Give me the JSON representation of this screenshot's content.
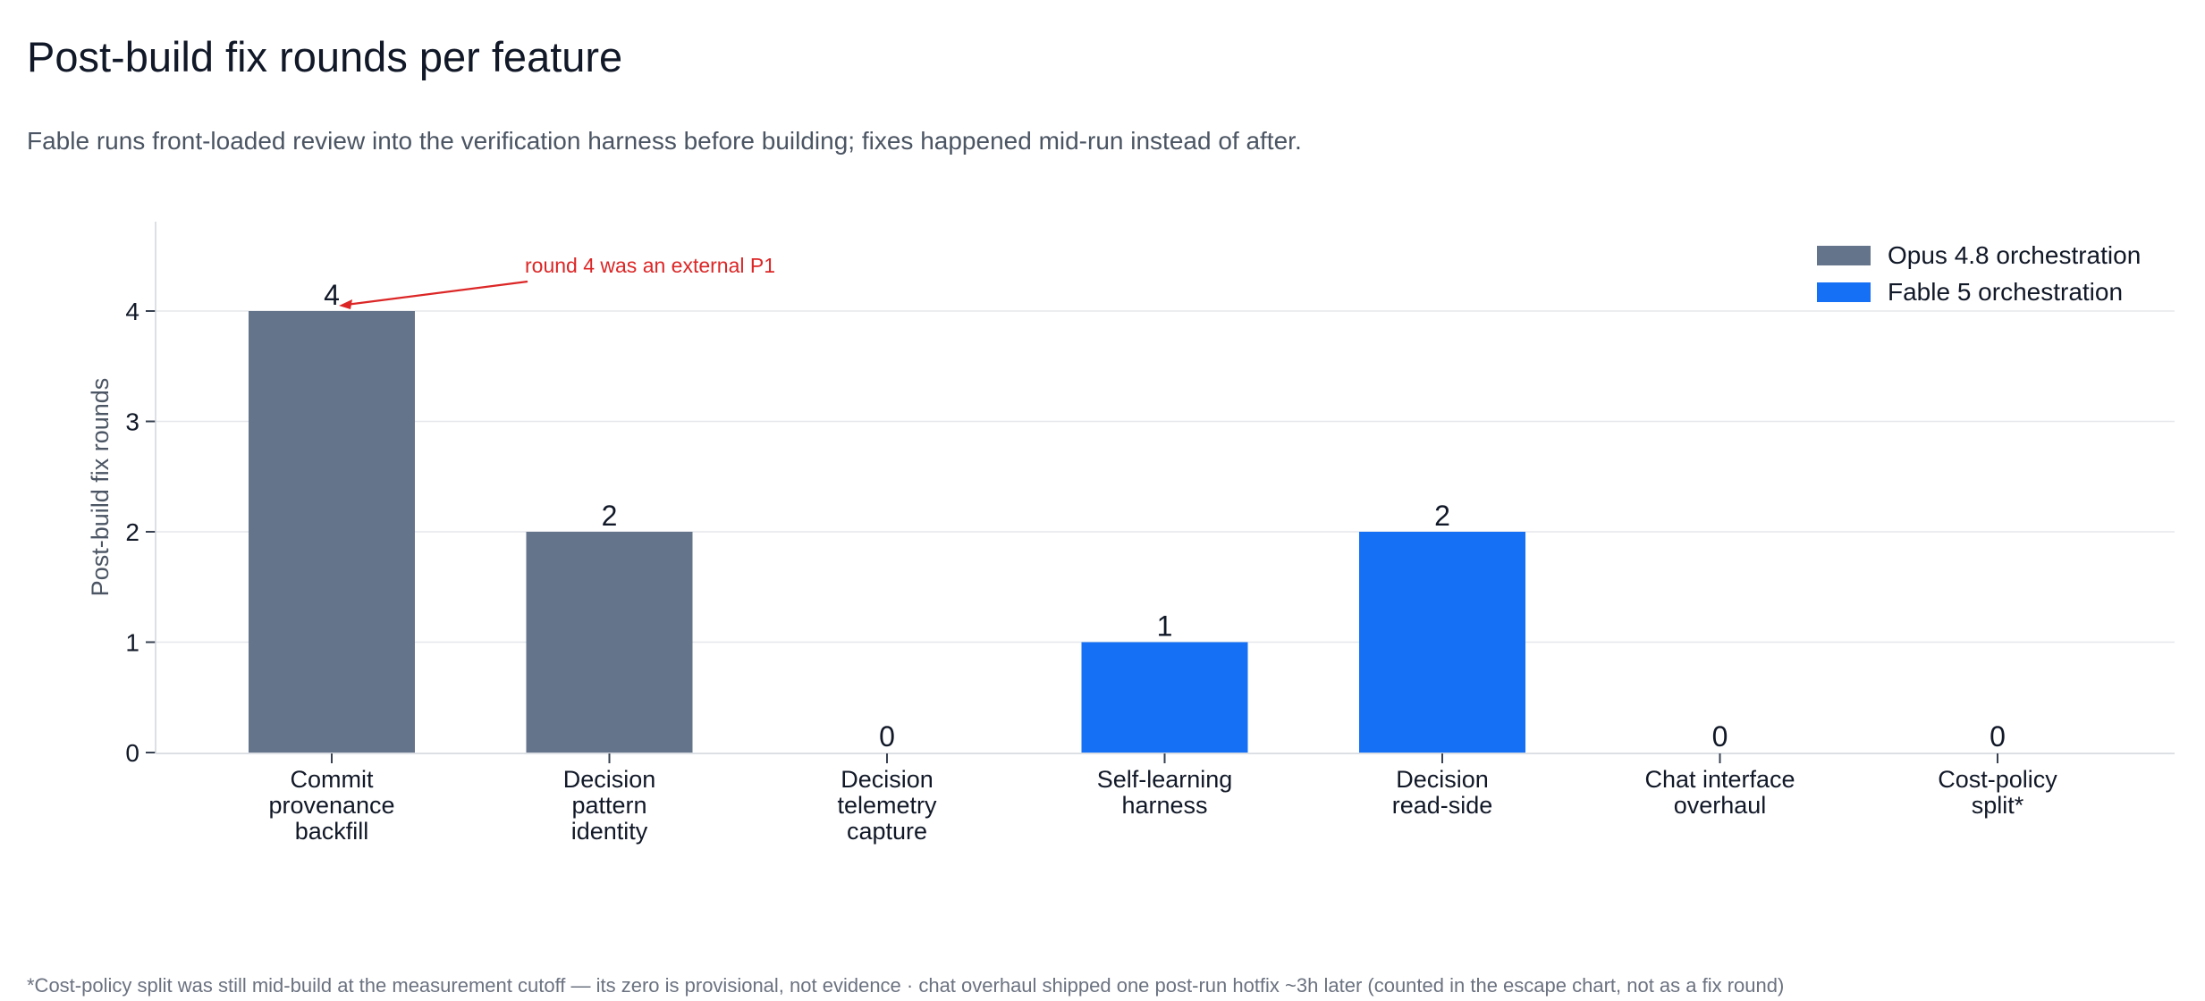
{
  "page": {
    "title": "Post-build fix rounds per feature",
    "subtitle": "Fable runs front-loaded review into the verification harness before building; fixes happened mid-run instead of after.",
    "footnote": "*Cost-policy split was still mid-build at the measurement cutoff — its zero is provisional, not evidence · chat overhaul shipped one post-run hotfix ~3h later (counted in the escape chart, not as a fix round)"
  },
  "chart_data": {
    "type": "bar",
    "title": "Post-build fix rounds per feature",
    "ylabel": "Post-build fix rounds",
    "xlabel": "",
    "ylim": [
      0,
      4.8
    ],
    "yticks": [
      0,
      1,
      2,
      3,
      4
    ],
    "grid": true,
    "legend_position": "top-right",
    "categories": [
      "Commit provenance backfill",
      "Decision pattern identity",
      "Decision telemetry capture",
      "Self-learning harness",
      "Decision read-side",
      "Chat interface overhaul",
      "Cost-policy split*"
    ],
    "category_lines": [
      [
        "Commit",
        "provenance",
        "backfill"
      ],
      [
        "Decision",
        "pattern",
        "identity"
      ],
      [
        "Decision",
        "telemetry",
        "capture"
      ],
      [
        "Self-learning",
        "harness"
      ],
      [
        "Decision",
        "read-side"
      ],
      [
        "Chat interface",
        "overhaul"
      ],
      [
        "Cost-policy",
        "split*"
      ]
    ],
    "values": [
      4,
      2,
      0,
      1,
      2,
      0,
      0
    ],
    "bar_series": [
      0,
      0,
      0,
      1,
      1,
      1,
      1
    ],
    "series": [
      {
        "name": "Opus 4.8 orchestration",
        "color": "#64748b"
      },
      {
        "name": "Fable 5 orchestration",
        "color": "#1570f5"
      }
    ],
    "annotations": [
      {
        "text": "round 4 was an external P1",
        "target_category": 0,
        "target_value": 4,
        "color": "#dc2626"
      }
    ]
  }
}
